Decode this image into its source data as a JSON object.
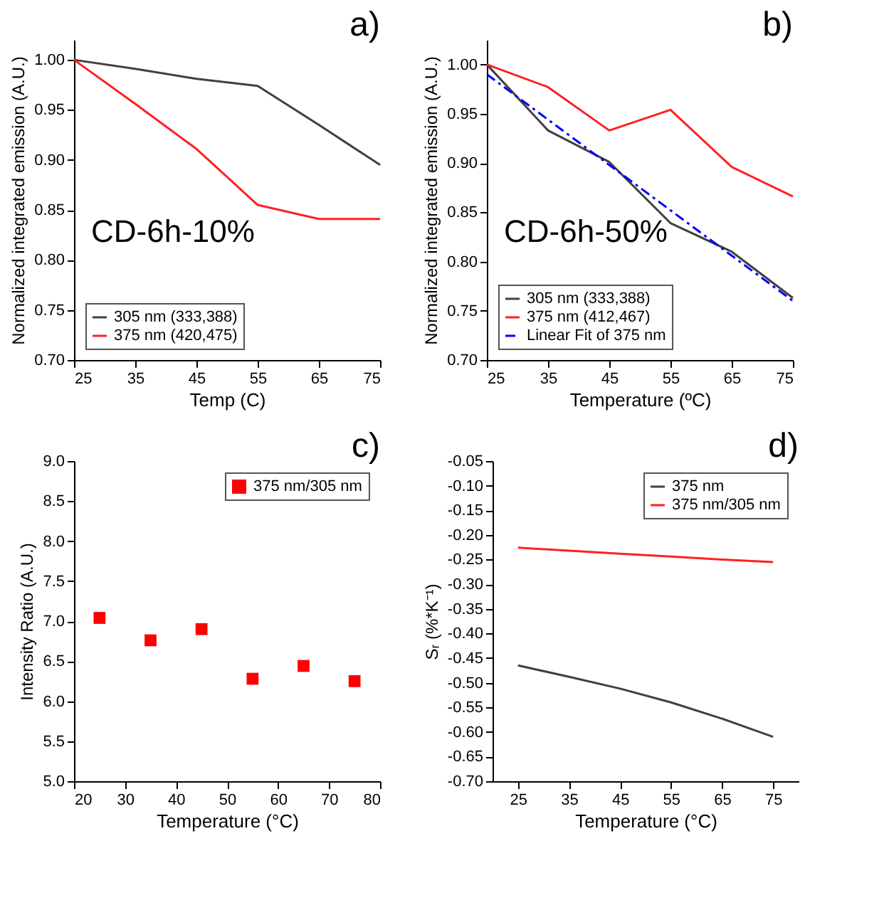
{
  "chart_data": [
    {
      "type": "line",
      "xlabel": "Temp (C)",
      "ylabel": "Normalized integrated emission (A.U.)",
      "annotations": [
        "a)",
        "CD-6h-10%"
      ],
      "x": [
        25,
        35,
        45,
        55,
        65,
        75
      ],
      "xlim": [
        25,
        75
      ],
      "xticks": [
        25,
        35,
        45,
        55,
        65,
        75
      ],
      "ylim": [
        0.7,
        1.02
      ],
      "yticks": [
        {
          "value": 0.7,
          "label": "0.70"
        },
        0.75,
        {
          "value": 0.8,
          "label": "0.80"
        },
        0.85,
        {
          "value": 0.9,
          "label": "0.90"
        },
        0.95,
        {
          "value": 1.0,
          "label": "1.00"
        }
      ],
      "grid": false,
      "legend": "bottom left",
      "marker": "none",
      "series": [
        {
          "name": "305 nm (333,388)",
          "color": "#404040",
          "values": [
            1.0,
            0.991,
            0.981,
            0.974,
            0.935,
            0.895
          ]
        },
        {
          "name": "375 nm (420,475)",
          "color": "#ff2020",
          "values": [
            1.0,
            0.956,
            0.911,
            0.855,
            0.841,
            0.841
          ]
        }
      ]
    },
    {
      "type": "line",
      "xlabel": "Temperature (ºC)",
      "ylabel": "Normalized integrated emission (A.U.)",
      "annotations": [
        "b)",
        "CD-6h-50%"
      ],
      "x": [
        25,
        35,
        45,
        55,
        65,
        75
      ],
      "xlim": [
        25,
        75
      ],
      "xticks": [
        25,
        35,
        45,
        55,
        65,
        75
      ],
      "ylim": [
        0.7,
        1.025
      ],
      "yticks": [
        {
          "value": 0.7,
          "label": "0.70"
        },
        0.75,
        {
          "value": 0.8,
          "label": "0.80"
        },
        0.85,
        {
          "value": 0.9,
          "label": "0.90"
        },
        0.95,
        {
          "value": 1.0,
          "label": "1.00"
        }
      ],
      "grid": false,
      "legend": "bottom left",
      "marker": "none",
      "series": [
        {
          "name": "305 nm (333,388)",
          "color": "#404040",
          "values": [
            1.0,
            0.933,
            0.901,
            0.839,
            0.81,
            0.763
          ]
        },
        {
          "name": "375 nm (412,467)",
          "color": "#ff2020",
          "values": [
            1.0,
            0.977,
            0.933,
            0.954,
            0.896,
            0.866
          ]
        },
        {
          "name": "Linear Fit of 375 nm",
          "color": "#0000ff",
          "type": "line",
          "line_style": "dashed",
          "x": [
            25,
            75
          ],
          "values": [
            0.99,
            0.76
          ]
        }
      ]
    },
    {
      "type": "scatter",
      "xlabel": "Temperature (°C)",
      "ylabel": "Intensity Ratio (A.U.)",
      "annotations": [
        "c)"
      ],
      "x": [
        25,
        35,
        45,
        55,
        65,
        75
      ],
      "xlim": [
        20,
        80
      ],
      "xticks": [
        20,
        30,
        40,
        50,
        60,
        70,
        80
      ],
      "ylim": [
        5,
        9
      ],
      "yticks": [
        {
          "value": 5,
          "label": "5.0"
        },
        5.5,
        {
          "value": 6,
          "label": "6.0"
        },
        6.5,
        {
          "value": 7,
          "label": "7.0"
        },
        7.5,
        {
          "value": 8,
          "label": "8.0"
        },
        8.5,
        {
          "value": 9,
          "label": "9.0"
        }
      ],
      "grid": false,
      "legend": "top right",
      "marker": "square",
      "series": [
        {
          "name": "375 nm/305 nm",
          "color": "#ff0000",
          "values": [
            7.04,
            6.76,
            6.9,
            6.28,
            6.44,
            6.25
          ]
        }
      ]
    },
    {
      "type": "line",
      "xlabel": "Temperature (°C)",
      "ylabel": "Sᵣ (%*K⁻¹)",
      "annotations": [
        "d)"
      ],
      "x": [
        25,
        35,
        45,
        55,
        65,
        75
      ],
      "xlim": [
        20,
        80
      ],
      "xticks": [
        25,
        35,
        45,
        55,
        65,
        75
      ],
      "ylim": [
        -0.7,
        -0.05
      ],
      "yticks": [
        -0.05,
        {
          "value": -0.1,
          "label": "-0.10"
        },
        -0.15,
        {
          "value": -0.2,
          "label": "-0.20"
        },
        -0.25,
        {
          "value": -0.3,
          "label": "-0.30"
        },
        -0.35,
        {
          "value": -0.4,
          "label": "-0.40"
        },
        -0.45,
        {
          "value": -0.5,
          "label": "-0.50"
        },
        -0.55,
        {
          "value": -0.6,
          "label": "-0.60"
        },
        -0.65,
        {
          "value": -0.7,
          "label": "-0.70"
        }
      ],
      "grid": false,
      "legend": "top right",
      "marker": "none",
      "series": [
        {
          "name": "375 nm",
          "color": "#404040",
          "values": [
            -0.465,
            -0.488,
            -0.512,
            -0.54,
            -0.573,
            -0.61
          ]
        },
        {
          "name": "375 nm/305 nm",
          "color": "#ff2020",
          "values": [
            -0.226,
            -0.232,
            -0.238,
            -0.244,
            -0.25,
            -0.255
          ]
        }
      ]
    }
  ]
}
